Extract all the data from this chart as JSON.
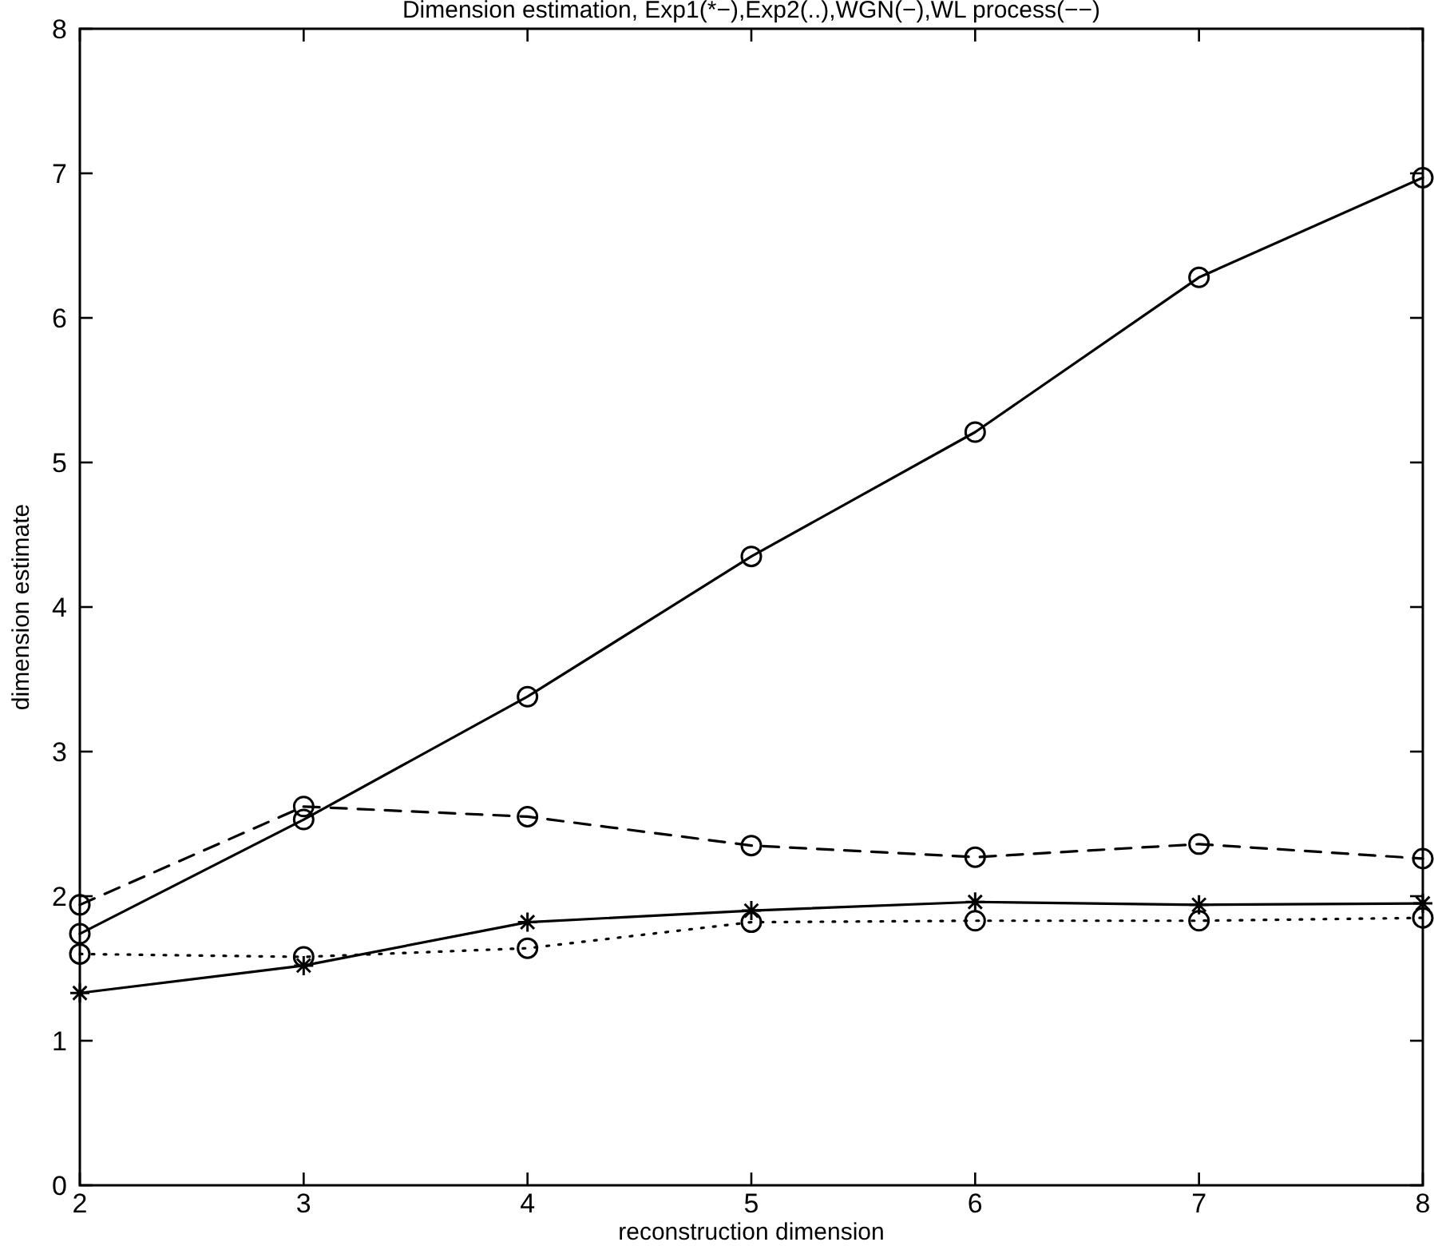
{
  "chart_data": {
    "type": "line",
    "title": "Dimension estimation, Exp1(*−),Exp2(..),WGN(−),WL process(−−)",
    "xlabel": "reconstruction dimension",
    "ylabel": "dimension estimate",
    "x": [
      2,
      3,
      4,
      5,
      6,
      7,
      8
    ],
    "series": [
      {
        "color": "#000000",
        "marker": "cross",
        "line_style": "solid",
        "values": [
          1.33,
          1.52,
          1.82,
          1.9,
          1.96,
          1.94,
          1.95
        ]
      },
      {
        "color": "#000000",
        "marker": "circle",
        "line_style": "dotted",
        "values": [
          1.6,
          1.58,
          1.64,
          1.82,
          1.83,
          1.83,
          1.85
        ]
      },
      {
        "color": "#000000",
        "marker": "circle",
        "line_style": "solid",
        "values": [
          1.74,
          2.53,
          3.38,
          4.35,
          5.21,
          6.28,
          6.97
        ]
      },
      {
        "color": "#000000",
        "marker": "circle",
        "line_style": "dashed",
        "values": [
          1.94,
          2.62,
          2.55,
          2.35,
          2.27,
          2.36,
          2.26
        ]
      }
    ],
    "xlim": [
      2,
      8
    ],
    "xticks": [
      2,
      3,
      4,
      5,
      6,
      7,
      8
    ],
    "ylim": [
      0,
      8
    ],
    "yticks": [
      0,
      1,
      2,
      3,
      4,
      5,
      6,
      7,
      8
    ],
    "grid": false
  }
}
